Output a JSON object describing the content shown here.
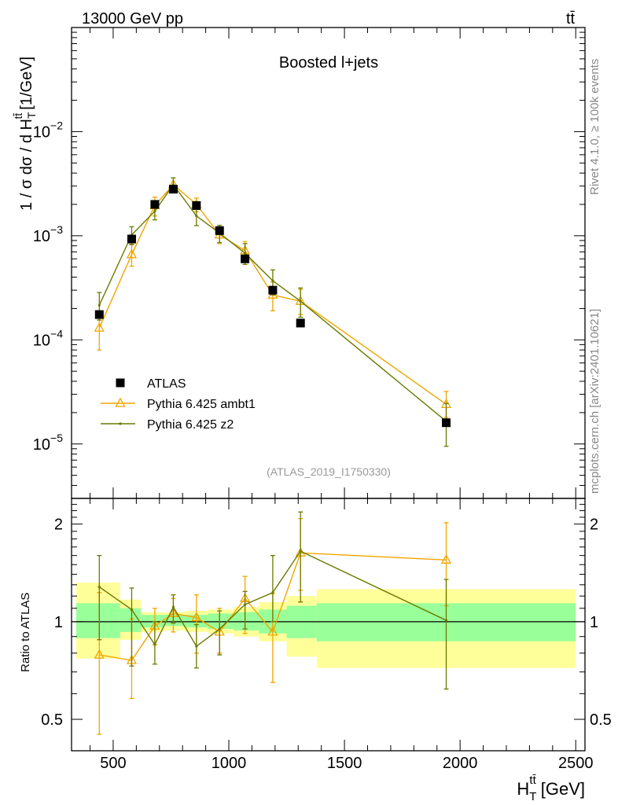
{
  "chart_data": {
    "type": "line",
    "header": {
      "left": "13000 GeV pp",
      "right": "tt̄"
    },
    "title": "Boosted l+jets",
    "side_labels": {
      "top": "Rivet 4.1.0, ≥ 100k events",
      "bottom": "mcplots.cern.ch [arXiv:2401.10621]"
    },
    "analysis_id": "(ATLAS_2019_I1750330)",
    "xlabel": {
      "main": "H",
      "sub": "T",
      "sup": "tt̄",
      "unit": "[GeV]"
    },
    "ylabel": {
      "prefix": "1 / σ dσ / d H",
      "sub": "T",
      "sup": "tt̄",
      "unit": "[1/GeV]"
    },
    "ratio_ylabel": "Ratio to ATLAS",
    "xlim": [
      320,
      2540
    ],
    "ylim": [
      3e-06,
      0.1
    ],
    "ratio_ylim": [
      0.4,
      2.4
    ],
    "x_ticks": [
      {
        "value": 500,
        "label": "500"
      },
      {
        "value": 1000,
        "label": "1000"
      },
      {
        "value": 1500,
        "label": "1500"
      },
      {
        "value": 2000,
        "label": "2000"
      },
      {
        "value": 2500,
        "label": "2500"
      }
    ],
    "y_ticks": [
      {
        "value": 0.01,
        "base": "10",
        "exp": "−2"
      },
      {
        "value": 0.001,
        "base": "10",
        "exp": "−3"
      },
      {
        "value": 0.0001,
        "base": "10",
        "exp": "−4"
      },
      {
        "value": 1e-05,
        "base": "10",
        "exp": "−5"
      }
    ],
    "ratio_ticks": [
      {
        "value": 0.5,
        "label": "0.5"
      },
      {
        "value": 1,
        "label": "1"
      },
      {
        "value": 2,
        "label": "2"
      }
    ],
    "legend": [
      {
        "name": "ATLAS",
        "marker": "square",
        "color": "#000000"
      },
      {
        "name": "Pythia 6.425 ambt1",
        "marker": "triangle",
        "color": "#f0a500"
      },
      {
        "name": "Pythia 6.425 z2",
        "marker": "dot",
        "color": "#6b7a00"
      }
    ],
    "data_series": {
      "name": "ATLAS",
      "x": [
        440,
        580,
        680,
        760,
        860,
        960,
        1070,
        1190,
        1310,
        1940
      ],
      "y": [
        0.000175,
        0.00093,
        0.002,
        0.0028,
        0.00195,
        0.00112,
        0.0006,
        0.0003,
        0.000145,
        1.6e-05
      ]
    },
    "ratio_bands": [
      {
        "x_range": [
          340,
          530
        ],
        "inner": [
          0.89,
          1.14
        ],
        "outer": [
          0.77,
          1.32
        ]
      },
      {
        "x_range": [
          530,
          620
        ],
        "inner": [
          0.93,
          1.1
        ],
        "outer": [
          0.88,
          1.17
        ]
      },
      {
        "x_range": [
          620,
          720
        ],
        "inner": [
          0.96,
          1.05
        ],
        "outer": [
          0.93,
          1.07
        ]
      },
      {
        "x_range": [
          720,
          810
        ],
        "inner": [
          0.97,
          1.05
        ],
        "outer": [
          0.94,
          1.07
        ]
      },
      {
        "x_range": [
          810,
          910
        ],
        "inner": [
          0.96,
          1.05
        ],
        "outer": [
          0.93,
          1.08
        ]
      },
      {
        "x_range": [
          910,
          1020
        ],
        "inner": [
          0.95,
          1.06
        ],
        "outer": [
          0.92,
          1.09
        ]
      },
      {
        "x_range": [
          1020,
          1130
        ],
        "inner": [
          0.94,
          1.07
        ],
        "outer": [
          0.9,
          1.11
        ]
      },
      {
        "x_range": [
          1130,
          1250
        ],
        "inner": [
          0.92,
          1.09
        ],
        "outer": [
          0.87,
          1.15
        ]
      },
      {
        "x_range": [
          1250,
          1380
        ],
        "inner": [
          0.89,
          1.12
        ],
        "outer": [
          0.78,
          1.2
        ]
      },
      {
        "x_range": [
          1380,
          2500
        ],
        "inner": [
          0.87,
          1.14
        ],
        "outer": [
          0.72,
          1.26
        ]
      }
    ],
    "series": [
      {
        "name": "Pythia 6.425 ambt1",
        "color": "#f0a500",
        "x": [
          440,
          580,
          680,
          760,
          860,
          960,
          1070,
          1190,
          1310,
          1940
        ],
        "y": [
          0.00013,
          0.00066,
          0.00195,
          0.0031,
          0.002,
          0.00102,
          0.00072,
          0.00027,
          0.000235,
          2.4e-05
        ],
        "y_err_low": [
          5e-05,
          0.00015,
          0.0004,
          0.0005,
          0.0003,
          0.00018,
          0.00015,
          8e-05,
          6e-05,
          6e-06
        ],
        "y_err_high": [
          6e-05,
          0.00017,
          0.0004,
          0.0005,
          0.0003,
          0.0002,
          0.00016,
          9e-05,
          7e-05,
          8e-06
        ],
        "ratio": [
          0.79,
          0.76,
          0.97,
          1.06,
          1.03,
          0.93,
          1.18,
          0.93,
          1.63,
          1.55
        ],
        "ratio_low": [
          0.45,
          0.58,
          0.85,
          0.93,
          0.8,
          0.8,
          0.92,
          0.65,
          1.25,
          1.12
        ],
        "ratio_high": [
          1.23,
          1.02,
          1.1,
          1.18,
          1.21,
          1.1,
          1.38,
          1.22,
          2.08,
          2.02
        ]
      },
      {
        "name": "Pythia 6.425 z2",
        "color": "#6b7a00",
        "x": [
          440,
          580,
          680,
          760,
          860,
          960,
          1070,
          1190,
          1310,
          1940
        ],
        "y": [
          0.000215,
          0.00102,
          0.00172,
          0.0031,
          0.00155,
          0.00106,
          0.00068,
          0.00037,
          0.000235,
          1.65e-05
        ],
        "y_err_low": [
          6e-05,
          0.0002,
          0.0003,
          0.0005,
          0.0003,
          0.0002,
          0.00015,
          0.0001,
          7e-05,
          7e-06
        ],
        "y_err_high": [
          7e-05,
          0.0002,
          0.0003,
          0.0005,
          0.0003,
          0.0002,
          0.00016,
          0.0001,
          8e-05,
          8e-06
        ],
        "ratio": [
          1.28,
          1.09,
          0.85,
          1.11,
          0.84,
          0.95,
          1.13,
          1.23,
          1.65,
          1.01
        ],
        "ratio_low": [
          0.88,
          0.73,
          0.74,
          0.99,
          0.72,
          0.79,
          0.95,
          1.0,
          1.15,
          0.62
        ],
        "ratio_high": [
          1.6,
          1.27,
          1.0,
          1.21,
          0.98,
          1.08,
          1.24,
          1.6,
          2.18,
          1.35
        ]
      }
    ]
  }
}
